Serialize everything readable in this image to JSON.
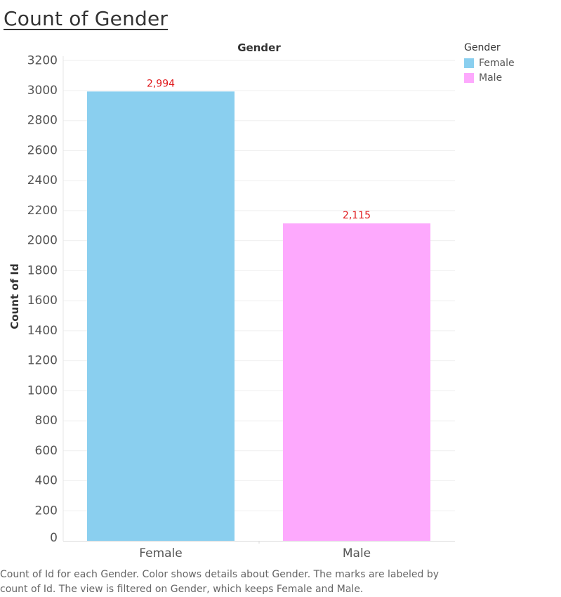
{
  "sheet_title": "Count of Gender",
  "legend": {
    "title": "Gender",
    "items": [
      {
        "label": "Female",
        "color": "#8ACFEF"
      },
      {
        "label": "Male",
        "color": "#FDA9FD"
      }
    ]
  },
  "caption_line1": "Count of Id for each Gender.  Color shows details about Gender.  The marks are labeled by",
  "caption_line2": "count of Id. The view is filtered on Gender, which keeps Female and Male.",
  "chart_data": {
    "type": "bar",
    "title": "Gender",
    "xlabel": "",
    "ylabel": "Count of Id",
    "categories": [
      "Female",
      "Male"
    ],
    "values": [
      2994,
      2115
    ],
    "value_labels": [
      "2,994",
      "2,115"
    ],
    "colors": [
      "#8ACFEF",
      "#FDA9FD"
    ],
    "label_color": "#E0191C",
    "ylim": [
      0,
      3250
    ],
    "yticks": [
      0,
      200,
      400,
      600,
      800,
      1000,
      1200,
      1400,
      1600,
      1800,
      2000,
      2200,
      2400,
      2600,
      2800,
      3000,
      3200
    ],
    "grid": true
  }
}
